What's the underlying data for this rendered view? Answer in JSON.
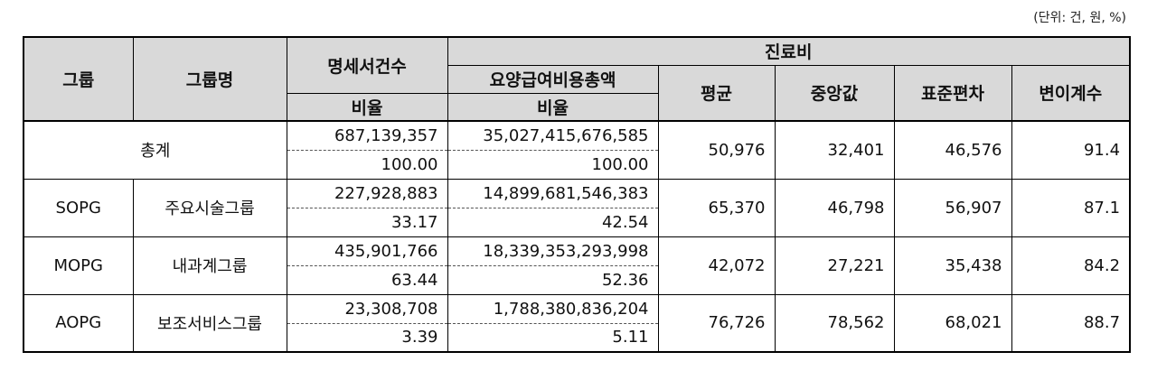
{
  "unit_note": "(단위: 건, 원, %)",
  "header": {
    "group": "그룹",
    "group_name": "그룹명",
    "statement_count": "명세서건수",
    "care_cost": "진료비",
    "total_benefit_cost": "요양급여비용총액",
    "ratio_1": "비율",
    "ratio_2": "비율",
    "mean": "평균",
    "median": "중앙값",
    "std_dev": "표준편차",
    "cv": "변이계수"
  },
  "rows": {
    "total": {
      "label": "총계",
      "count": "687,139,357",
      "count_ratio": "100.00",
      "cost": "35,027,415,676,585",
      "cost_ratio": "100.00",
      "mean": "50,976",
      "median": "32,401",
      "std": "46,576",
      "cv": "91.4"
    },
    "sopg": {
      "code": "SOPG",
      "name": "주요시술그룹",
      "count": "227,928,883",
      "count_ratio": "33.17",
      "cost": "14,899,681,546,383",
      "cost_ratio": "42.54",
      "mean": "65,370",
      "median": "46,798",
      "std": "56,907",
      "cv": "87.1"
    },
    "mopg": {
      "code": "MOPG",
      "name": "내과계그룹",
      "count": "435,901,766",
      "count_ratio": "63.44",
      "cost": "18,339,353,293,998",
      "cost_ratio": "52.36",
      "mean": "42,072",
      "median": "27,221",
      "std": "35,438",
      "cv": "84.2"
    },
    "aopg": {
      "code": "AOPG",
      "name": "보조서비스그룹",
      "count": "23,308,708",
      "count_ratio": "3.39",
      "cost": "1,788,380,836,204",
      "cost_ratio": "5.11",
      "mean": "76,726",
      "median": "78,562",
      "std": "68,021",
      "cv": "88.7"
    }
  }
}
